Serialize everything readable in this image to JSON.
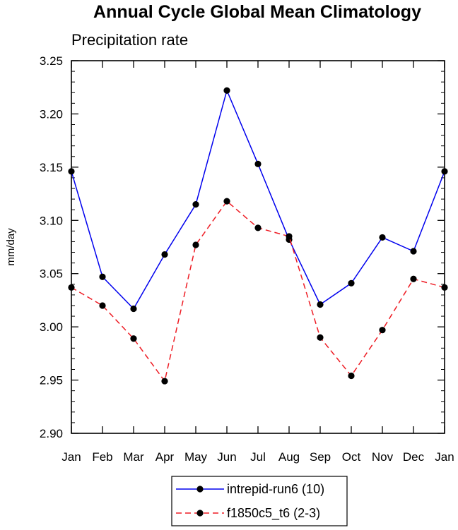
{
  "chart_data": {
    "type": "line",
    "title": "Annual Cycle Global Mean Climatology",
    "subtitle": "Precipitation rate",
    "xlabel": "",
    "ylabel": "mm/day",
    "categories": [
      "Jan",
      "Feb",
      "Mar",
      "Apr",
      "May",
      "Jun",
      "Jul",
      "Aug",
      "Sep",
      "Oct",
      "Nov",
      "Dec",
      "Jan"
    ],
    "ylim": [
      2.9,
      3.25
    ],
    "yticks": [
      "2.90",
      "2.95",
      "3.00",
      "3.05",
      "3.10",
      "3.15",
      "3.20",
      "3.25"
    ],
    "grid": false,
    "legend_position": "bottom-center",
    "series": [
      {
        "name": "intrepid-run6 (10)",
        "color": "#0000ee",
        "line_style": "solid",
        "marker": "filled-circle",
        "values": [
          3.146,
          3.047,
          3.017,
          3.068,
          3.115,
          3.222,
          3.153,
          3.082,
          3.021,
          3.041,
          3.084,
          3.071,
          3.146
        ]
      },
      {
        "name": "f1850c5_t6 (2-3)",
        "color": "#ee1c24",
        "line_style": "dashed",
        "marker": "filled-circle",
        "values": [
          3.037,
          3.02,
          2.989,
          2.949,
          3.077,
          3.118,
          3.093,
          3.085,
          2.99,
          2.954,
          2.997,
          3.045,
          3.037
        ]
      }
    ]
  }
}
